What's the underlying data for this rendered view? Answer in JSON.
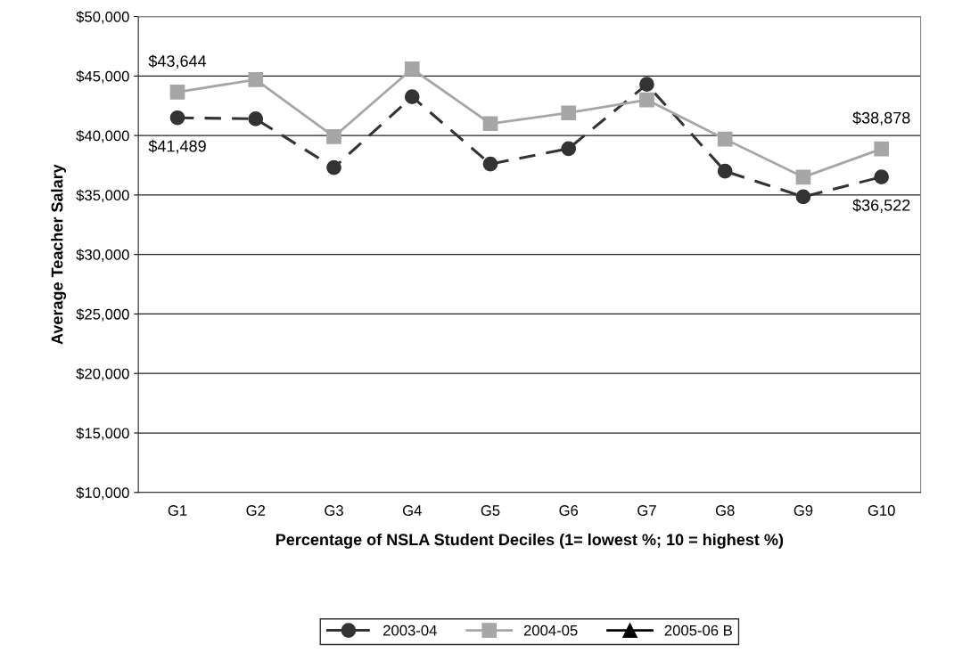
{
  "chart_data": {
    "type": "line",
    "xlabel": "Percentage of NSLA Student Deciles (1= lowest %; 10 = highest %)",
    "ylabel": "Average Teacher Salary",
    "categories": [
      "G1",
      "G2",
      "G3",
      "G4",
      "G5",
      "G6",
      "G7",
      "G8",
      "G9",
      "G10"
    ],
    "series": [
      {
        "name": "2003-04",
        "color": "#333333",
        "marker": "circle",
        "line_style": "dashed",
        "values": [
          41489,
          41400,
          37300,
          43250,
          37600,
          38900,
          44300,
          37000,
          34850,
          36522
        ],
        "value_labels": [
          "$41,489",
          null,
          null,
          null,
          null,
          null,
          null,
          null,
          null,
          "$36,522"
        ]
      },
      {
        "name": "2004-05",
        "color": "#a6a6a6",
        "marker": "square",
        "line_style": "solid",
        "values": [
          43644,
          44700,
          39900,
          45600,
          41000,
          41900,
          43000,
          39700,
          36500,
          38878
        ],
        "value_labels": [
          "$43,644",
          null,
          null,
          null,
          null,
          null,
          null,
          null,
          null,
          "$38,878"
        ]
      },
      {
        "name": "2005-06 B",
        "color": "#000000",
        "marker": "triangle",
        "line_style": "solid",
        "values": [
          null,
          null,
          null,
          null,
          null,
          null,
          null,
          null,
          null,
          null
        ]
      }
    ],
    "ylim": [
      10000,
      50000
    ],
    "yticks": [
      {
        "value": 10000,
        "label": "$10,000"
      },
      {
        "value": 15000,
        "label": "$15,000"
      },
      {
        "value": 20000,
        "label": "$20,000"
      },
      {
        "value": 25000,
        "label": "$25,000"
      },
      {
        "value": 30000,
        "label": "$30,000"
      },
      {
        "value": 35000,
        "label": "$35,000"
      },
      {
        "value": 40000,
        "label": "$40,000"
      },
      {
        "value": 45000,
        "label": "$45,000"
      },
      {
        "value": 50000,
        "label": "$50,000"
      }
    ],
    "grid": "y",
    "legend": "bottom"
  }
}
